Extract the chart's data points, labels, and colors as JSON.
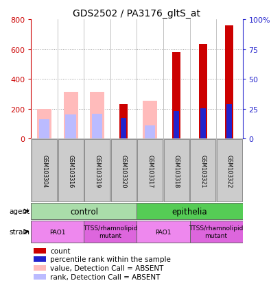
{
  "title": "GDS2502 / PA3176_gltS_at",
  "samples": [
    "GSM103304",
    "GSM103316",
    "GSM103319",
    "GSM103320",
    "GSM103317",
    "GSM103318",
    "GSM103321",
    "GSM103322"
  ],
  "count_values": [
    0,
    0,
    0,
    230,
    0,
    580,
    635,
    760
  ],
  "rank_values": [
    0,
    0,
    0,
    140,
    0,
    185,
    205,
    230
  ],
  "absent_value_bars": [
    200,
    315,
    315,
    0,
    255,
    0,
    0,
    0
  ],
  "absent_rank_bars": [
    130,
    160,
    165,
    0,
    90,
    0,
    0,
    0
  ],
  "count_color": "#cc0000",
  "rank_color": "#2222cc",
  "absent_value_color": "#ffbbbb",
  "absent_rank_color": "#bbbbff",
  "ylim_left": [
    0,
    800
  ],
  "ylim_right": [
    0,
    100
  ],
  "yticks_left": [
    0,
    200,
    400,
    600,
    800
  ],
  "yticks_right": [
    0,
    25,
    50,
    75,
    100
  ],
  "yticklabels_right": [
    "0",
    "25",
    "50",
    "75",
    "100%"
  ],
  "grid_lines": [
    200,
    400,
    600
  ],
  "agent_groups": [
    {
      "label": "control",
      "start": 0,
      "end": 4,
      "color": "#aaddaa"
    },
    {
      "label": "epithelia",
      "start": 4,
      "end": 8,
      "color": "#55cc55"
    }
  ],
  "strain_groups": [
    {
      "label": "PAO1",
      "start": 0,
      "end": 2,
      "color": "#ee88ee"
    },
    {
      "label": "TTSS/rhamnolipid\nmutant",
      "start": 2,
      "end": 4,
      "color": "#dd66dd"
    },
    {
      "label": "PAO1",
      "start": 4,
      "end": 6,
      "color": "#ee88ee"
    },
    {
      "label": "TTSS/rhamnolipid\nmutant",
      "start": 6,
      "end": 8,
      "color": "#dd66dd"
    }
  ],
  "legend_labels": [
    "count",
    "percentile rank within the sample",
    "value, Detection Call = ABSENT",
    "rank, Detection Call = ABSENT"
  ],
  "legend_colors": [
    "#cc0000",
    "#2222cc",
    "#ffbbbb",
    "#bbbbff"
  ],
  "bg_color": "#ffffff",
  "sample_bg": "#cccccc",
  "agent_label": "agent",
  "strain_label": "strain"
}
